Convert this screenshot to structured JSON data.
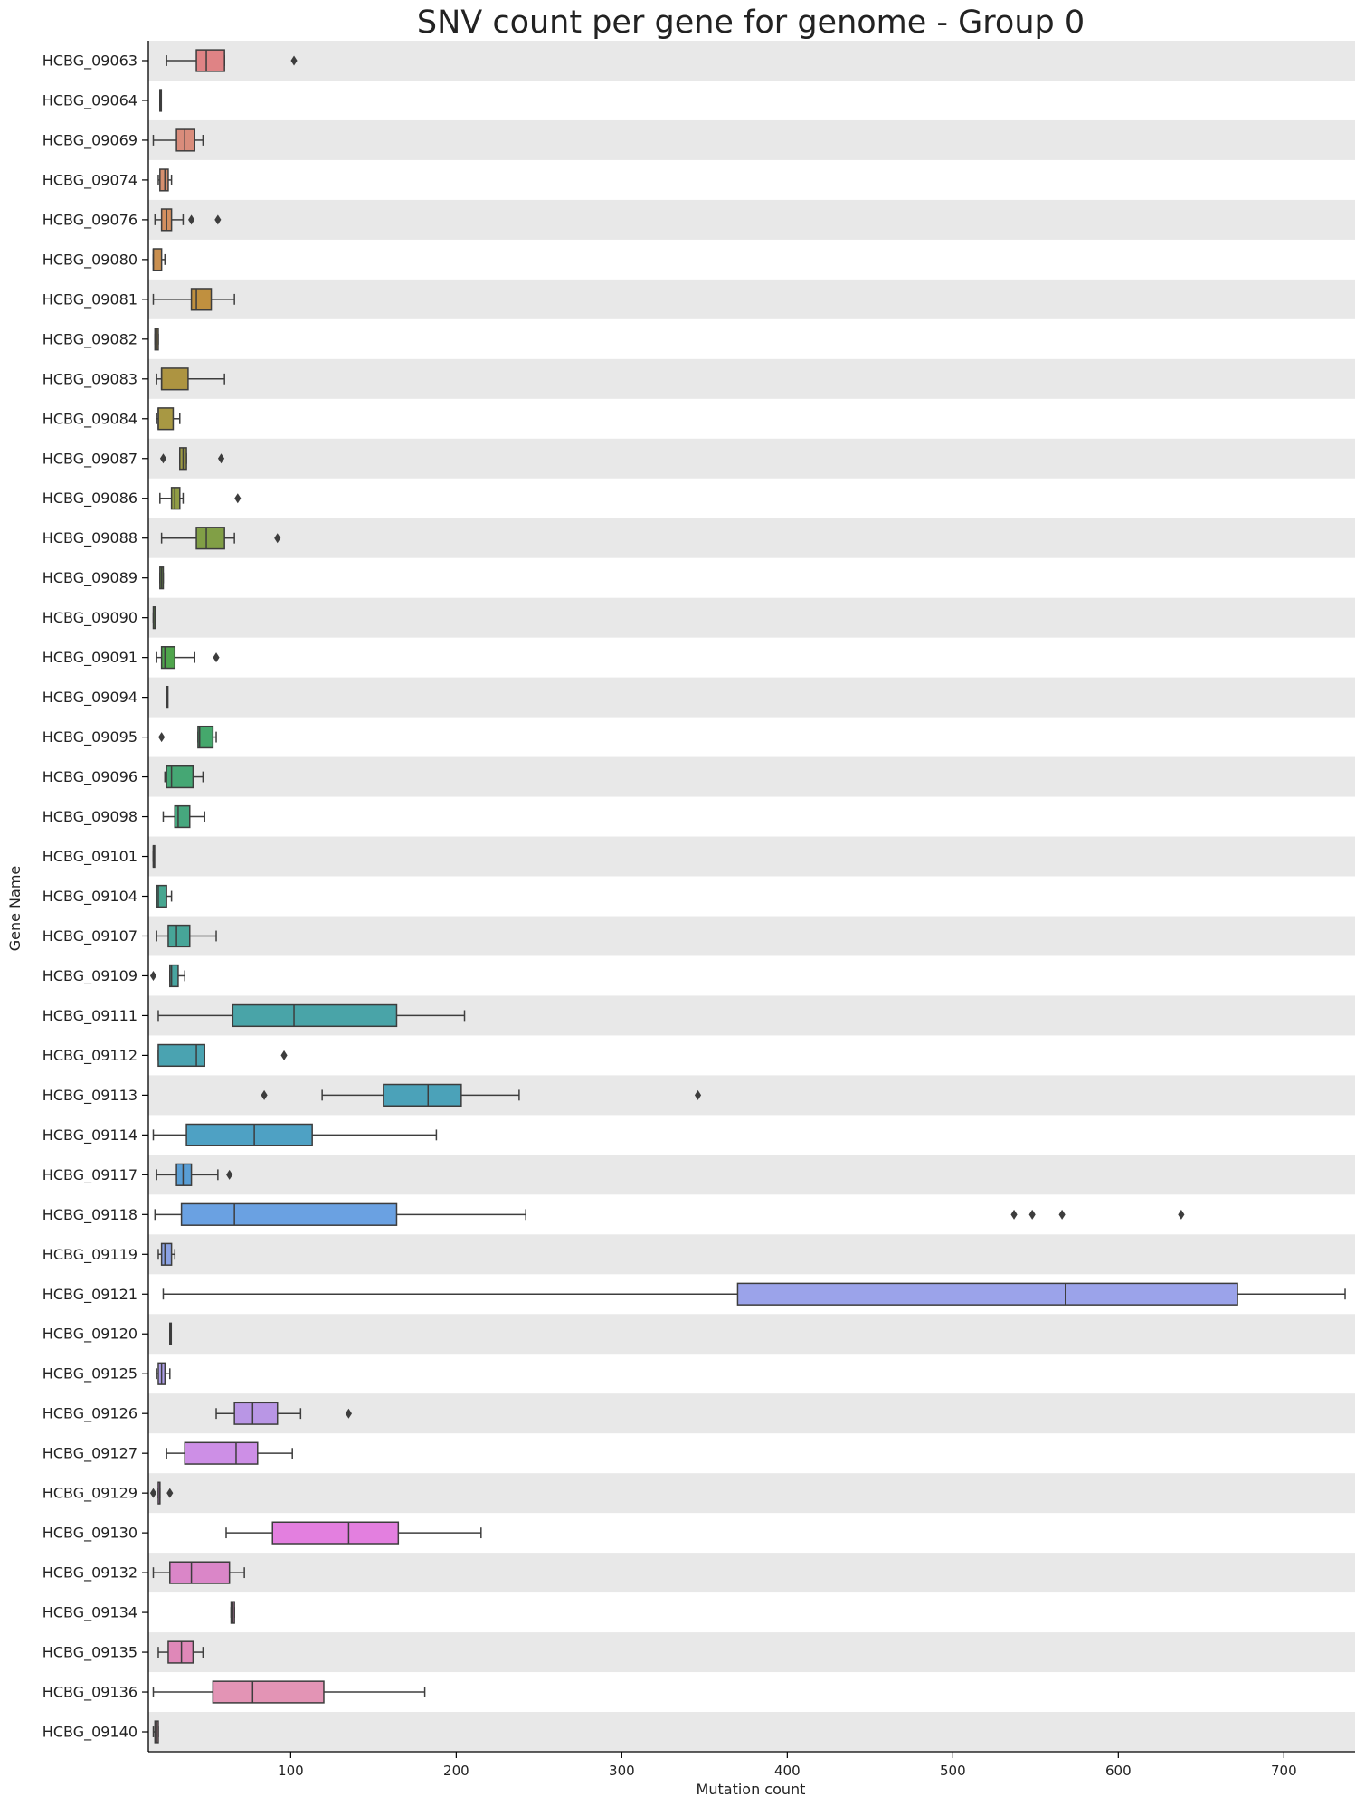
{
  "chart_data": {
    "type": "boxplot",
    "orientation": "horizontal",
    "title": "SNV count per gene for genome - Group 0",
    "xlabel": "Mutation count",
    "ylabel": "Gene Name",
    "xlim": [
      14,
      743
    ],
    "xticks": [
      100,
      200,
      300,
      400,
      500,
      600,
      700
    ],
    "band_color": "#e8e8e8",
    "genes": [
      {
        "name": "HCBG_09063",
        "color": "#df8385",
        "whislo": 25,
        "q1": 43,
        "med": 49,
        "q3": 60,
        "whishi": 60,
        "fliers": [
          102
        ]
      },
      {
        "name": "HCBG_09064",
        "color": "#dc8a7a",
        "whislo": 21,
        "q1": 21,
        "med": 21,
        "q3": 21,
        "whishi": 21,
        "fliers": []
      },
      {
        "name": "HCBG_09069",
        "color": "#d98c7b",
        "whislo": 17,
        "q1": 31,
        "med": 36,
        "q3": 42,
        "whishi": 47,
        "fliers": []
      },
      {
        "name": "HCBG_09074",
        "color": "#d68f6e",
        "whislo": 20,
        "q1": 21,
        "med": 24,
        "q3": 26,
        "whishi": 28,
        "fliers": []
      },
      {
        "name": "HCBG_09076",
        "color": "#d38f5f",
        "whislo": 18,
        "q1": 22,
        "med": 25,
        "q3": 28,
        "whishi": 35,
        "fliers": [
          40,
          56
        ]
      },
      {
        "name": "HCBG_09080",
        "color": "#c98f4f",
        "whislo": 17,
        "q1": 17,
        "med": 17,
        "q3": 22,
        "whishi": 24,
        "fliers": []
      },
      {
        "name": "HCBG_09081",
        "color": "#c0903f",
        "whislo": 17,
        "q1": 40,
        "med": 43,
        "q3": 52,
        "whishi": 66,
        "fliers": []
      },
      {
        "name": "HCBG_09082",
        "color": "#b69241",
        "whislo": 18,
        "q1": 18,
        "med": 19,
        "q3": 20,
        "whishi": 20,
        "fliers": []
      },
      {
        "name": "HCBG_09083",
        "color": "#ad9441",
        "whislo": 19,
        "q1": 22,
        "med": 22,
        "q3": 38,
        "whishi": 60,
        "fliers": []
      },
      {
        "name": "HCBG_09084",
        "color": "#a89843",
        "whislo": 19,
        "q1": 20,
        "med": 20,
        "q3": 29,
        "whishi": 33,
        "fliers": []
      },
      {
        "name": "HCBG_09087",
        "color": "#9c9a43",
        "whislo": 33,
        "q1": 33,
        "med": 35,
        "q3": 37,
        "whishi": 37,
        "fliers": [
          23,
          58
        ]
      },
      {
        "name": "HCBG_09086",
        "color": "#909c45",
        "whislo": 21,
        "q1": 28,
        "med": 30,
        "q3": 33,
        "whishi": 35,
        "fliers": [
          68
        ]
      },
      {
        "name": "HCBG_09088",
        "color": "#819f46",
        "whislo": 22,
        "q1": 43,
        "med": 49,
        "q3": 60,
        "whishi": 66,
        "fliers": [
          92
        ]
      },
      {
        "name": "HCBG_09089",
        "color": "#71a148",
        "whislo": 21,
        "q1": 21,
        "med": 22,
        "q3": 23,
        "whishi": 23,
        "fliers": []
      },
      {
        "name": "HCBG_09090",
        "color": "#5fa349",
        "whislo": 17,
        "q1": 17,
        "med": 18,
        "q3": 18,
        "whishi": 18,
        "fliers": []
      },
      {
        "name": "HCBG_09091",
        "color": "#4fa54c",
        "whislo": 19,
        "q1": 22,
        "med": 24,
        "q3": 30,
        "whishi": 42,
        "fliers": [
          55
        ]
      },
      {
        "name": "HCBG_09094",
        "color": "#48a55f",
        "whislo": 25,
        "q1": 25,
        "med": 25,
        "q3": 25,
        "whishi": 25,
        "fliers": []
      },
      {
        "name": "HCBG_09095",
        "color": "#45a86c",
        "whislo": 44,
        "q1": 44,
        "med": 45,
        "q3": 53,
        "whishi": 55,
        "fliers": [
          22
        ]
      },
      {
        "name": "HCBG_09096",
        "color": "#45a774",
        "whislo": 24,
        "q1": 25,
        "med": 28,
        "q3": 41,
        "whishi": 47,
        "fliers": []
      },
      {
        "name": "HCBG_09098",
        "color": "#46a77e",
        "whislo": 23,
        "q1": 30,
        "med": 32,
        "q3": 39,
        "whishi": 48,
        "fliers": []
      },
      {
        "name": "HCBG_09101",
        "color": "#46a688",
        "whislo": 17,
        "q1": 17,
        "med": 17,
        "q3": 17,
        "whishi": 17,
        "fliers": []
      },
      {
        "name": "HCBG_09104",
        "color": "#47a690",
        "whislo": 19,
        "q1": 19,
        "med": 20,
        "q3": 25,
        "whishi": 28,
        "fliers": []
      },
      {
        "name": "HCBG_09107",
        "color": "#47a598",
        "whislo": 19,
        "q1": 26,
        "med": 31,
        "q3": 39,
        "whishi": 55,
        "fliers": []
      },
      {
        "name": "HCBG_09109",
        "color": "#48a5a0",
        "whislo": 27,
        "q1": 27,
        "med": 28,
        "q3": 32,
        "whishi": 36,
        "fliers": [
          17
        ]
      },
      {
        "name": "HCBG_09111",
        "color": "#49a4a8",
        "whislo": 20,
        "q1": 65,
        "med": 102,
        "q3": 164,
        "whishi": 205,
        "fliers": []
      },
      {
        "name": "HCBG_09112",
        "color": "#4aa3b1",
        "whislo": 20,
        "q1": 20,
        "med": 43,
        "q3": 48,
        "whishi": 48,
        "fliers": [
          96
        ]
      },
      {
        "name": "HCBG_09113",
        "color": "#4ba2b9",
        "whislo": 119,
        "q1": 156,
        "med": 183,
        "q3": 203,
        "whishi": 238,
        "fliers": [
          84,
          346
        ]
      },
      {
        "name": "HCBG_09114",
        "color": "#4ea1c4",
        "whislo": 17,
        "q1": 37,
        "med": 78,
        "q3": 113,
        "whishi": 188,
        "fliers": []
      },
      {
        "name": "HCBG_09117",
        "color": "#599ed5",
        "whislo": 19,
        "q1": 31,
        "med": 35,
        "q3": 40,
        "whishi": 56,
        "fliers": [
          63
        ]
      },
      {
        "name": "HCBG_09118",
        "color": "#6aa1e2",
        "whislo": 18,
        "q1": 34,
        "med": 66,
        "q3": 164,
        "whishi": 242,
        "fliers": [
          537,
          548,
          566,
          638
        ]
      },
      {
        "name": "HCBG_09119",
        "color": "#8ba2e3",
        "whislo": 20,
        "q1": 22,
        "med": 24,
        "q3": 28,
        "whishi": 30,
        "fliers": []
      },
      {
        "name": "HCBG_09121",
        "color": "#9ba3ea",
        "whislo": 23,
        "q1": 370,
        "med": 568,
        "q3": 672,
        "whishi": 737,
        "fliers": []
      },
      {
        "name": "HCBG_09120",
        "color": "#a8a6ec",
        "whislo": 27,
        "q1": 27,
        "med": 27,
        "q3": 27,
        "whishi": 27,
        "fliers": []
      },
      {
        "name": "HCBG_09125",
        "color": "#ae9fe8",
        "whislo": 19,
        "q1": 20,
        "med": 22,
        "q3": 24,
        "whishi": 27,
        "fliers": []
      },
      {
        "name": "HCBG_09126",
        "color": "#b996e5",
        "whislo": 55,
        "q1": 66,
        "med": 77,
        "q3": 92,
        "whishi": 106,
        "fliers": [
          135
        ]
      },
      {
        "name": "HCBG_09127",
        "color": "#cd8fe6",
        "whislo": 25,
        "q1": 36,
        "med": 67,
        "q3": 80,
        "whishi": 101,
        "fliers": []
      },
      {
        "name": "HCBG_09129",
        "color": "#d98be5",
        "whislo": 20,
        "q1": 20,
        "med": 21,
        "q3": 21,
        "whishi": 21,
        "fliers": [
          17,
          27
        ]
      },
      {
        "name": "HCBG_09130",
        "color": "#e37fdf",
        "whislo": 61,
        "q1": 89,
        "med": 135,
        "q3": 165,
        "whishi": 215,
        "fliers": []
      },
      {
        "name": "HCBG_09132",
        "color": "#da86c8",
        "whislo": 17,
        "q1": 27,
        "med": 40,
        "q3": 63,
        "whishi": 72,
        "fliers": []
      },
      {
        "name": "HCBG_09134",
        "color": "#de8bc3",
        "whislo": 64,
        "q1": 64,
        "med": 65,
        "q3": 66,
        "whishi": 66,
        "fliers": []
      },
      {
        "name": "HCBG_09135",
        "color": "#df88b8",
        "whislo": 20,
        "q1": 26,
        "med": 34,
        "q3": 41,
        "whishi": 47,
        "fliers": []
      },
      {
        "name": "HCBG_09136",
        "color": "#e394b5",
        "whislo": 17,
        "q1": 53,
        "med": 77,
        "q3": 120,
        "whishi": 181,
        "fliers": []
      },
      {
        "name": "HCBG_09140",
        "color": "#e396ad",
        "whislo": 17,
        "q1": 18,
        "med": 19,
        "q3": 20,
        "whishi": 20,
        "fliers": []
      }
    ]
  }
}
